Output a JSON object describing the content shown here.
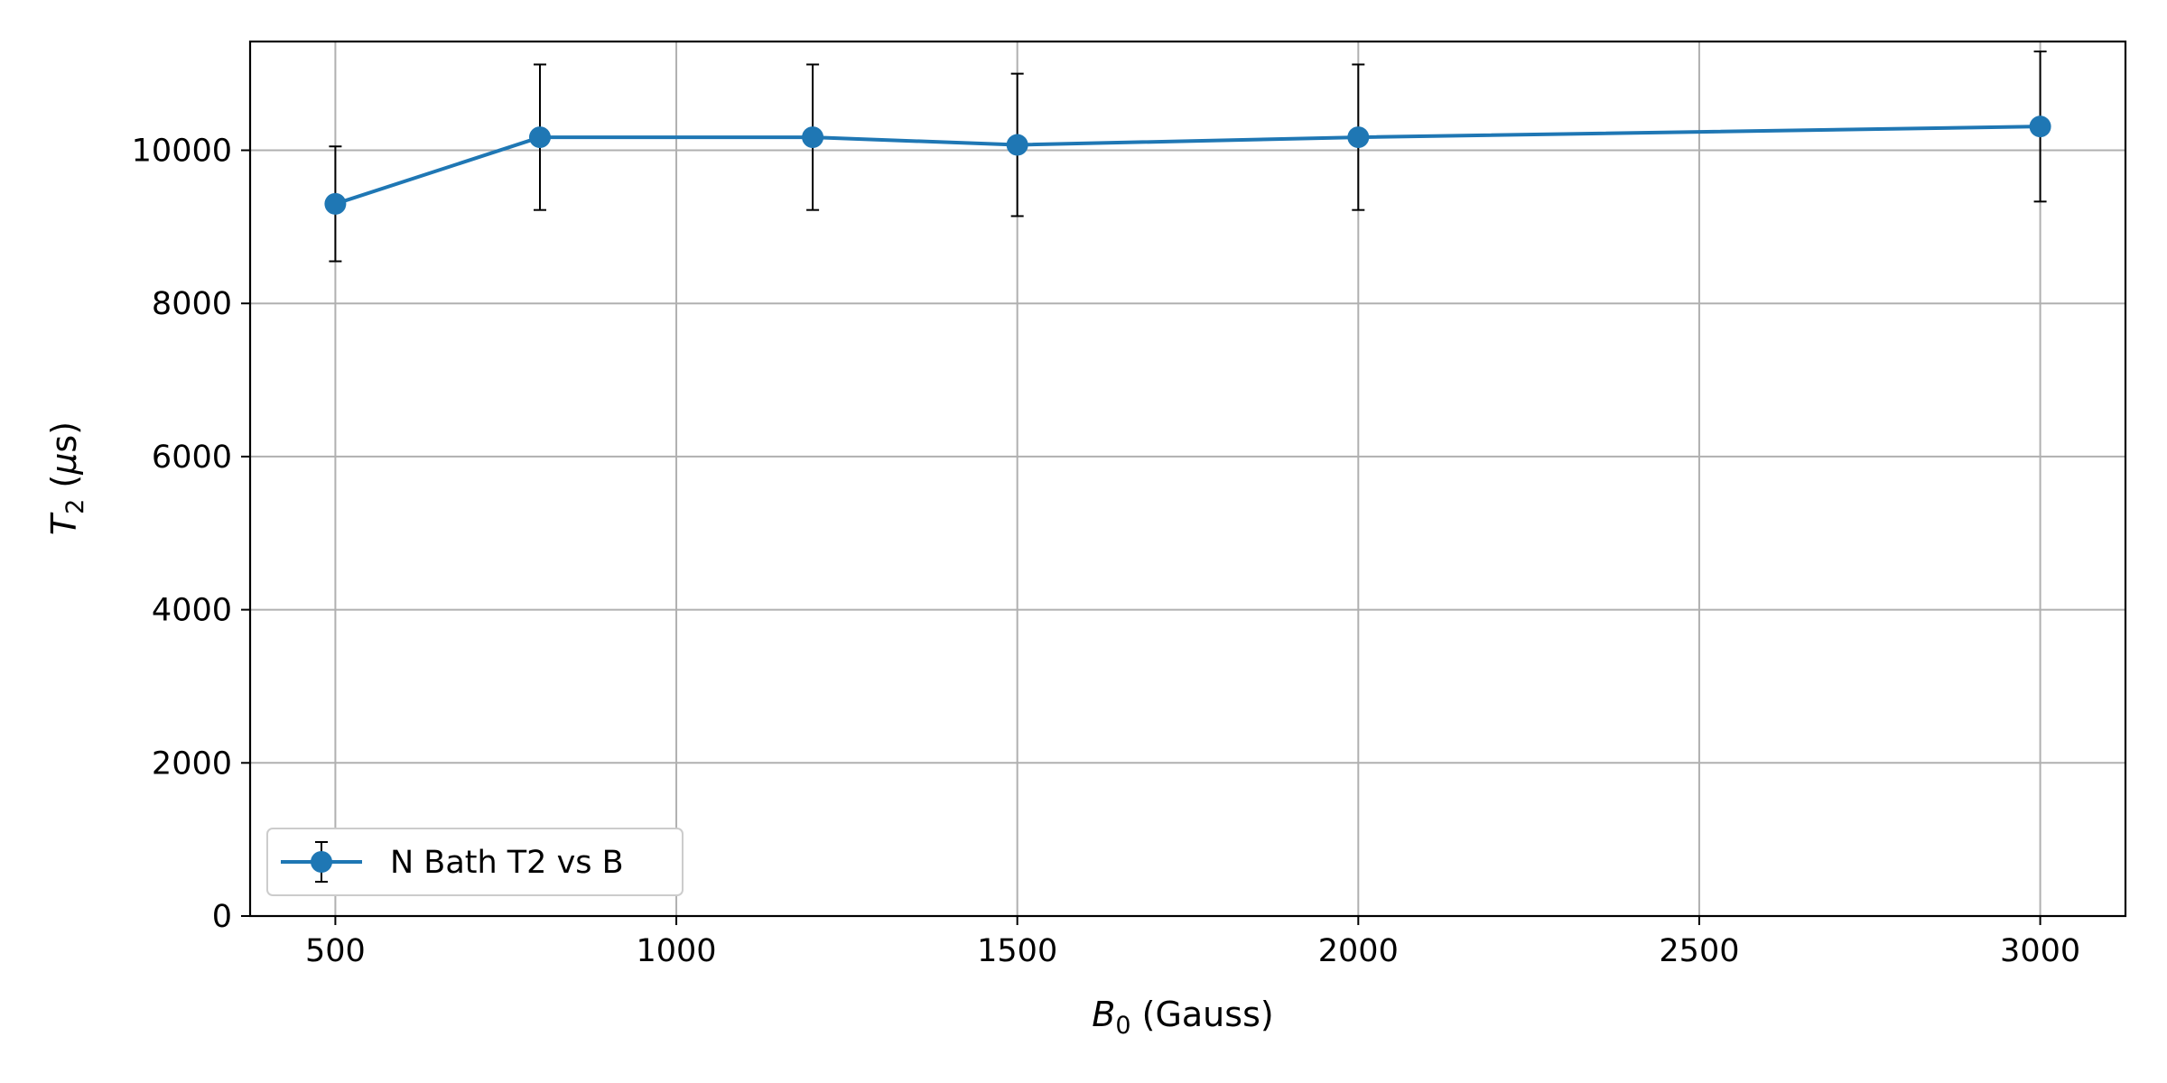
{
  "chart_data": {
    "type": "line",
    "x": [
      500,
      800,
      1200,
      1500,
      2000,
      3000
    ],
    "series": [
      {
        "name": "N Bath T2 vs B",
        "values": [
          9300,
          10170,
          10170,
          10070,
          10170,
          10310
        ],
        "error": [
          750,
          950,
          950,
          930,
          950,
          980
        ],
        "color": "#1f77b4"
      }
    ],
    "xlabel": "B0 (Gauss)",
    "xlabel_parts": {
      "symbol": "B",
      "sub": "0",
      "rest": " (Gauss)"
    },
    "ylabel": "T2 (μs)",
    "ylabel_parts": {
      "symbol": "T",
      "sub": "2",
      "rest_open": " (",
      "greek": "μ",
      "rest_close": "s)"
    },
    "xlim": [
      375,
      3125
    ],
    "ylim": [
      0,
      11420
    ],
    "xticks": [
      "500",
      "1000",
      "1500",
      "2000",
      "2500",
      "3000"
    ],
    "yticks": [
      "0",
      "2000",
      "4000",
      "6000",
      "8000",
      "10000"
    ],
    "grid": true,
    "legend_position": "lower-left",
    "error_bar_color": "#000000",
    "grid_color": "#b0b0b0"
  }
}
